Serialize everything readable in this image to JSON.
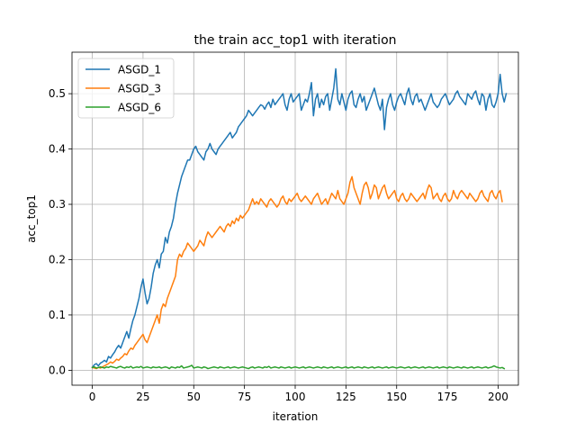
{
  "chart_data": {
    "type": "line",
    "title": "the train acc_top1 with iteration",
    "xlabel": "iteration",
    "ylabel": "acc_top1",
    "xlim": [
      -10,
      210
    ],
    "ylim": [
      -0.027,
      0.575
    ],
    "x_ticks": [
      0,
      25,
      50,
      75,
      100,
      125,
      150,
      175,
      200
    ],
    "y_ticks": [
      0.0,
      0.1,
      0.2,
      0.3,
      0.4,
      0.5
    ],
    "y_tick_labels": [
      "0.0",
      "0.1",
      "0.2",
      "0.3",
      "0.4",
      "0.5"
    ],
    "grid": true,
    "legend_position": "top-left",
    "x_start": 0,
    "x_step": 1,
    "series": [
      {
        "name": "ASGD_1",
        "color": "#1f77b4",
        "values": [
          0.005,
          0.01,
          0.012,
          0.008,
          0.013,
          0.015,
          0.018,
          0.015,
          0.025,
          0.022,
          0.028,
          0.033,
          0.04,
          0.045,
          0.04,
          0.05,
          0.06,
          0.07,
          0.058,
          0.075,
          0.09,
          0.1,
          0.115,
          0.13,
          0.15,
          0.165,
          0.14,
          0.12,
          0.13,
          0.15,
          0.175,
          0.19,
          0.2,
          0.185,
          0.21,
          0.215,
          0.24,
          0.23,
          0.25,
          0.26,
          0.275,
          0.3,
          0.32,
          0.335,
          0.35,
          0.36,
          0.37,
          0.38,
          0.38,
          0.39,
          0.4,
          0.405,
          0.395,
          0.39,
          0.385,
          0.38,
          0.395,
          0.4,
          0.41,
          0.4,
          0.395,
          0.39,
          0.4,
          0.405,
          0.41,
          0.415,
          0.42,
          0.425,
          0.43,
          0.42,
          0.425,
          0.43,
          0.44,
          0.445,
          0.45,
          0.455,
          0.46,
          0.47,
          0.465,
          0.46,
          0.465,
          0.47,
          0.475,
          0.48,
          0.478,
          0.472,
          0.48,
          0.485,
          0.475,
          0.49,
          0.48,
          0.485,
          0.49,
          0.495,
          0.5,
          0.48,
          0.47,
          0.49,
          0.5,
          0.485,
          0.49,
          0.495,
          0.5,
          0.47,
          0.48,
          0.49,
          0.485,
          0.5,
          0.52,
          0.46,
          0.49,
          0.5,
          0.475,
          0.49,
          0.48,
          0.495,
          0.5,
          0.47,
          0.49,
          0.51,
          0.545,
          0.49,
          0.48,
          0.5,
          0.485,
          0.47,
          0.49,
          0.5,
          0.505,
          0.48,
          0.475,
          0.49,
          0.5,
          0.485,
          0.495,
          0.47,
          0.48,
          0.49,
          0.5,
          0.51,
          0.495,
          0.48,
          0.47,
          0.49,
          0.435,
          0.475,
          0.49,
          0.5,
          0.48,
          0.47,
          0.485,
          0.495,
          0.5,
          0.49,
          0.48,
          0.5,
          0.51,
          0.49,
          0.48,
          0.495,
          0.5,
          0.485,
          0.49,
          0.48,
          0.47,
          0.48,
          0.49,
          0.5,
          0.485,
          0.48,
          0.475,
          0.48,
          0.49,
          0.495,
          0.5,
          0.49,
          0.48,
          0.485,
          0.49,
          0.5,
          0.505,
          0.495,
          0.49,
          0.485,
          0.48,
          0.5,
          0.495,
          0.49,
          0.5,
          0.505,
          0.49,
          0.48,
          0.5,
          0.495,
          0.47,
          0.49,
          0.5,
          0.48,
          0.475,
          0.485,
          0.5,
          0.535,
          0.5,
          0.485,
          0.5
        ]
      },
      {
        "name": "ASGD_3",
        "color": "#ff7f0e",
        "values": [
          0.005,
          0.004,
          0.003,
          0.005,
          0.004,
          0.006,
          0.008,
          0.01,
          0.012,
          0.015,
          0.013,
          0.016,
          0.02,
          0.018,
          0.022,
          0.025,
          0.03,
          0.028,
          0.035,
          0.04,
          0.038,
          0.045,
          0.05,
          0.055,
          0.06,
          0.065,
          0.055,
          0.05,
          0.06,
          0.07,
          0.08,
          0.09,
          0.1,
          0.085,
          0.11,
          0.12,
          0.115,
          0.13,
          0.14,
          0.15,
          0.16,
          0.17,
          0.2,
          0.21,
          0.205,
          0.215,
          0.22,
          0.23,
          0.225,
          0.22,
          0.215,
          0.22,
          0.225,
          0.235,
          0.23,
          0.225,
          0.24,
          0.25,
          0.245,
          0.24,
          0.245,
          0.25,
          0.255,
          0.26,
          0.255,
          0.25,
          0.26,
          0.265,
          0.26,
          0.27,
          0.265,
          0.275,
          0.27,
          0.28,
          0.275,
          0.28,
          0.285,
          0.29,
          0.3,
          0.31,
          0.3,
          0.305,
          0.3,
          0.31,
          0.305,
          0.3,
          0.295,
          0.305,
          0.31,
          0.305,
          0.3,
          0.295,
          0.3,
          0.31,
          0.315,
          0.305,
          0.3,
          0.31,
          0.305,
          0.31,
          0.315,
          0.32,
          0.31,
          0.305,
          0.31,
          0.315,
          0.31,
          0.305,
          0.3,
          0.31,
          0.315,
          0.32,
          0.31,
          0.3,
          0.305,
          0.31,
          0.3,
          0.31,
          0.32,
          0.315,
          0.31,
          0.325,
          0.31,
          0.305,
          0.3,
          0.31,
          0.32,
          0.34,
          0.35,
          0.33,
          0.32,
          0.31,
          0.3,
          0.32,
          0.335,
          0.34,
          0.33,
          0.31,
          0.32,
          0.335,
          0.33,
          0.31,
          0.32,
          0.33,
          0.335,
          0.32,
          0.31,
          0.315,
          0.32,
          0.325,
          0.31,
          0.305,
          0.315,
          0.32,
          0.31,
          0.305,
          0.31,
          0.32,
          0.315,
          0.31,
          0.305,
          0.31,
          0.315,
          0.32,
          0.31,
          0.325,
          0.335,
          0.33,
          0.31,
          0.315,
          0.32,
          0.31,
          0.305,
          0.315,
          0.32,
          0.31,
          0.305,
          0.31,
          0.325,
          0.315,
          0.31,
          0.32,
          0.325,
          0.32,
          0.315,
          0.31,
          0.32,
          0.315,
          0.31,
          0.305,
          0.31,
          0.32,
          0.325,
          0.315,
          0.31,
          0.305,
          0.32,
          0.325,
          0.315,
          0.31,
          0.32,
          0.325,
          0.305
        ]
      },
      {
        "name": "ASGD_6",
        "color": "#2ca02c",
        "values": [
          0.005,
          0.006,
          0.004,
          0.005,
          0.006,
          0.005,
          0.004,
          0.006,
          0.005,
          0.007,
          0.006,
          0.005,
          0.004,
          0.006,
          0.007,
          0.005,
          0.004,
          0.006,
          0.005,
          0.007,
          0.004,
          0.005,
          0.006,
          0.005,
          0.007,
          0.004,
          0.005,
          0.006,
          0.005,
          0.004,
          0.006,
          0.005,
          0.005,
          0.006,
          0.004,
          0.005,
          0.006,
          0.005,
          0.003,
          0.006,
          0.005,
          0.004,
          0.006,
          0.005,
          0.008,
          0.004,
          0.005,
          0.006,
          0.007,
          0.009,
          0.004,
          0.005,
          0.006,
          0.005,
          0.004,
          0.006,
          0.005,
          0.003,
          0.004,
          0.005,
          0.006,
          0.005,
          0.004,
          0.006,
          0.005,
          0.004,
          0.005,
          0.006,
          0.004,
          0.005,
          0.006,
          0.005,
          0.004,
          0.005,
          0.006,
          0.005,
          0.004,
          0.003,
          0.005,
          0.006,
          0.004,
          0.005,
          0.006,
          0.005,
          0.004,
          0.006,
          0.005,
          0.007,
          0.004,
          0.005,
          0.006,
          0.005,
          0.004,
          0.006,
          0.005,
          0.004,
          0.005,
          0.006,
          0.004,
          0.005,
          0.006,
          0.005,
          0.004,
          0.005,
          0.006,
          0.004,
          0.005,
          0.006,
          0.005,
          0.004,
          0.005,
          0.006,
          0.005,
          0.004,
          0.006,
          0.005,
          0.004,
          0.005,
          0.006,
          0.004,
          0.005,
          0.006,
          0.005,
          0.004,
          0.005,
          0.006,
          0.004,
          0.005,
          0.006,
          0.004,
          0.005,
          0.006,
          0.005,
          0.004,
          0.006,
          0.005,
          0.004,
          0.005,
          0.006,
          0.004,
          0.005,
          0.006,
          0.005,
          0.004,
          0.005,
          0.006,
          0.004,
          0.005,
          0.006,
          0.005,
          0.004,
          0.005,
          0.006,
          0.005,
          0.004,
          0.005,
          0.006,
          0.004,
          0.005,
          0.006,
          0.005,
          0.004,
          0.005,
          0.006,
          0.004,
          0.005,
          0.006,
          0.005,
          0.004,
          0.005,
          0.006,
          0.004,
          0.005,
          0.006,
          0.005,
          0.004,
          0.006,
          0.005,
          0.004,
          0.005,
          0.006,
          0.005,
          0.004,
          0.006,
          0.005,
          0.004,
          0.005,
          0.006,
          0.004,
          0.005,
          0.006,
          0.005,
          0.004,
          0.005,
          0.006,
          0.004,
          0.005,
          0.006,
          0.008,
          0.006,
          0.005,
          0.004,
          0.005,
          0.003
        ]
      }
    ]
  }
}
